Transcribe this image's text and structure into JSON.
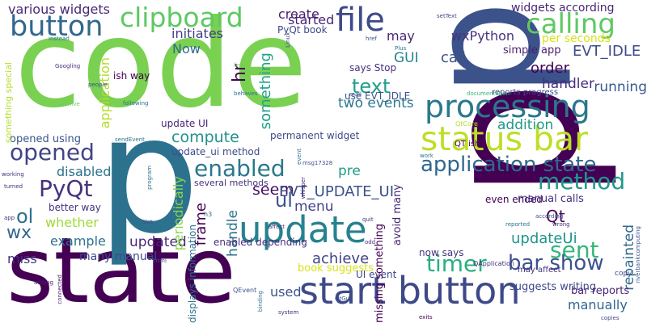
{
  "word_cloud": {
    "words": [
      {
        "text": "code",
        "color": "#7ad151",
        "rotate": 0
      },
      {
        "text": "state",
        "color": "#440154",
        "rotate": 0
      },
      {
        "text": "p",
        "color": "#2c728e",
        "rotate": 0
      },
      {
        "text": "p",
        "color": "#440154",
        "rotate": 90
      },
      {
        "text": "p",
        "color": "#3b528b",
        "rotate": 90
      },
      {
        "text": "start button",
        "color": "#3e4989",
        "rotate": 0
      },
      {
        "text": "status bar",
        "color": "#bddf26",
        "rotate": 0
      },
      {
        "text": "processing",
        "color": "#2a788e",
        "rotate": 0
      },
      {
        "text": "update",
        "color": "#26828e",
        "rotate": 0
      },
      {
        "text": "file",
        "color": "#3e4a89",
        "rotate": 0
      },
      {
        "text": "button",
        "color": "#31688e",
        "rotate": 0
      },
      {
        "text": "clipboard",
        "color": "#5ec962",
        "rotate": 0
      },
      {
        "text": "calling",
        "color": "#5ec962",
        "rotate": 0
      },
      {
        "text": "opened",
        "color": "#414487",
        "rotate": 0
      },
      {
        "text": "application state",
        "color": "#31688e",
        "rotate": 0
      },
      {
        "text": "enabled",
        "color": "#2a788e",
        "rotate": 0
      },
      {
        "text": "method",
        "color": "#1f988b",
        "rotate": 0
      },
      {
        "text": "PyQt",
        "color": "#46327e",
        "rotate": 0
      },
      {
        "text": "timer",
        "color": "#29af7f",
        "rotate": 0
      },
      {
        "text": "sent",
        "color": "#35b779",
        "rotate": 0
      },
      {
        "text": "bar show",
        "color": "#3b528b",
        "rotate": 0
      },
      {
        "text": "ul",
        "color": "#3b528b",
        "rotate": 0
      },
      {
        "text": "ol",
        "color": "#2c728e",
        "rotate": 0
      },
      {
        "text": "wx",
        "color": "#31688e",
        "rotate": 0
      },
      {
        "text": "text",
        "color": "#1f9e89",
        "rotate": 0
      },
      {
        "text": "various widgets",
        "color": "#482878",
        "rotate": 0
      },
      {
        "text": "initiates",
        "color": "#433e85",
        "rotate": 0
      },
      {
        "text": "create",
        "color": "#481a6c",
        "rotate": 0
      },
      {
        "text": "started",
        "color": "#482475",
        "rotate": 0
      },
      {
        "text": "PyQt book",
        "color": "#3e4989",
        "rotate": 0
      },
      {
        "text": "may",
        "color": "#482878",
        "rotate": 0
      },
      {
        "text": "wxPython",
        "color": "#46337f",
        "rotate": 0
      },
      {
        "text": "widgets according",
        "color": "#482677",
        "rotate": 0
      },
      {
        "text": "per seconds",
        "color": "#d8e219",
        "rotate": 0
      },
      {
        "text": "EVT_IDLE",
        "color": "#3e4a89",
        "rotate": 0
      },
      {
        "text": "call",
        "color": "#3b528b",
        "rotate": 0
      },
      {
        "text": "simple app",
        "color": "#481f70",
        "rotate": 0
      },
      {
        "text": "order",
        "color": "#440154",
        "rotate": 0
      },
      {
        "text": "handler",
        "color": "#472d7b",
        "rotate": 0
      },
      {
        "text": "running",
        "color": "#38588c",
        "rotate": 0
      },
      {
        "text": "GUI",
        "color": "#26828e",
        "rotate": 0
      },
      {
        "text": "two events",
        "color": "#2a788e",
        "rotate": 0
      },
      {
        "text": "addition",
        "color": "#1f9a8a",
        "rotate": 0
      },
      {
        "text": "Now",
        "color": "#31688e",
        "rotate": 0
      },
      {
        "text": "something",
        "color": "#1fa188",
        "rotate": 90
      },
      {
        "text": "hr",
        "color": "#440154",
        "rotate": 90
      },
      {
        "text": "compute",
        "color": "#21918c",
        "rotate": 0
      },
      {
        "text": "application",
        "color": "#b5de2b",
        "rotate": 90
      },
      {
        "text": "opened using",
        "color": "#3b528b",
        "rotate": 0
      },
      {
        "text": "update UI",
        "color": "#482475",
        "rotate": 0
      },
      {
        "text": "update_ui method",
        "color": "#3e4a89",
        "rotate": 0
      },
      {
        "text": "permanent widget",
        "color": "#3e4989",
        "rotate": 0
      },
      {
        "text": "disabled",
        "color": "#2c728e",
        "rotate": 0
      },
      {
        "text": "seem",
        "color": "#471063",
        "rotate": 0
      },
      {
        "text": "pre",
        "color": "#1f9a8a",
        "rotate": 0
      },
      {
        "text": "even ended",
        "color": "#440154",
        "rotate": 0
      },
      {
        "text": "EVT_UPDATE_UI",
        "color": "#3b528b",
        "rotate": 0
      },
      {
        "text": "menu",
        "color": "#414487",
        "rotate": 0
      },
      {
        "text": "manual calls",
        "color": "#46307e",
        "rotate": 0
      },
      {
        "text": "Qt",
        "color": "#440154",
        "rotate": 0
      },
      {
        "text": "whether",
        "color": "#a0da39",
        "rotate": 0
      },
      {
        "text": "better way",
        "color": "#46327e",
        "rotate": 0
      },
      {
        "text": "example",
        "color": "#2c728e",
        "rotate": 0
      },
      {
        "text": "updated",
        "color": "#482878",
        "rotate": 0
      },
      {
        "text": "frame",
        "color": "#440154",
        "rotate": 90
      },
      {
        "text": "periodically",
        "color": "#86d549",
        "rotate": 90
      },
      {
        "text": "handle",
        "color": "#2c728e",
        "rotate": 90
      },
      {
        "text": "updateUi",
        "color": "#1f968b",
        "rotate": 0
      },
      {
        "text": "repainted",
        "color": "#31688e",
        "rotate": 90
      },
      {
        "text": "miss",
        "color": "#46307e",
        "rotate": 0
      },
      {
        "text": "many manual",
        "color": "#3e4989",
        "rotate": 0
      },
      {
        "text": "achieve",
        "color": "#414487",
        "rotate": 0
      },
      {
        "text": "now says",
        "color": "#46337f",
        "rotate": 0
      },
      {
        "text": "suggests writing",
        "color": "#3e4989",
        "rotate": 0
      },
      {
        "text": "manually",
        "color": "#31688e",
        "rotate": 0
      },
      {
        "text": "book suggests",
        "color": "#d8e219",
        "rotate": 0
      },
      {
        "text": "UI event",
        "color": "#3e4989",
        "rotate": 0
      },
      {
        "text": "used",
        "color": "#3b528b",
        "rotate": 0
      },
      {
        "text": "missing something",
        "color": "#440154",
        "rotate": 90
      },
      {
        "text": "avoid many",
        "color": "#482878",
        "rotate": 90
      },
      {
        "text": "bar reports",
        "color": "#482475",
        "rotate": 0
      },
      {
        "text": "enabled depending",
        "color": "#472d7b",
        "rotate": 0
      },
      {
        "text": "several methods",
        "color": "#46327e",
        "rotate": 0
      },
      {
        "text": "displays information",
        "color": "#2c728e",
        "rotate": 90
      },
      {
        "text": "something special",
        "color": "#b5de2b",
        "rotate": 90
      },
      {
        "text": "says Stop",
        "color": "#46327e",
        "rotate": 0
      },
      {
        "text": "use EVT_IDLE",
        "color": "#3b528b",
        "rotate": 0
      },
      {
        "text": "ish way",
        "color": "#440154",
        "rotate": 0
      },
      {
        "text": "reports progress",
        "color": "#3e4989",
        "rotate": 0
      },
      {
        "text": "documentation",
        "color": "#35b779",
        "rotate": 0
      },
      {
        "text": "may affect",
        "color": "#46307e",
        "rotate": 0
      },
      {
        "text": "copy",
        "color": "#3e4989",
        "rotate": 0
      },
      {
        "text": "QT ish",
        "color": "#440154",
        "rotate": 0
      },
      {
        "text": "QtCore",
        "color": "#b5de2b",
        "rotate": 0
      },
      {
        "text": "Googling",
        "color": "#46307e",
        "rotate": 0
      },
      {
        "text": "instead",
        "color": "#2c728e",
        "rotate": 0
      },
      {
        "text": "people",
        "color": "#3b528b",
        "rotate": 0
      },
      {
        "text": "archive",
        "color": "#6ccd5a",
        "rotate": 0
      },
      {
        "text": "following",
        "color": "#2c728e",
        "rotate": 0
      },
      {
        "text": "sendEvent",
        "color": "#2c728e",
        "rotate": 0
      },
      {
        "text": "working",
        "color": "#46307e",
        "rotate": 0
      },
      {
        "text": "turned",
        "color": "#472d7b",
        "rotate": 0
      },
      {
        "text": "program",
        "color": "#2c728e",
        "rotate": 90
      },
      {
        "text": "app",
        "color": "#46307e",
        "rotate": 0
      },
      {
        "text": "slot",
        "color": "#3b528b",
        "rotate": 0
      },
      {
        "text": "connected",
        "color": "#481f70",
        "rotate": 90
      },
      {
        "text": "adding",
        "color": "#481f70",
        "rotate": 0
      },
      {
        "text": "html",
        "color": "#3e4989",
        "rotate": 0
      },
      {
        "text": "QEvent",
        "color": "#3b528b",
        "rotate": 0
      },
      {
        "text": "binding",
        "color": "#2c728e",
        "rotate": 90
      },
      {
        "text": "system",
        "color": "#472d7b",
        "rotate": 0
      },
      {
        "text": "QtGui",
        "color": "#3b528b",
        "rotate": 0
      },
      {
        "text": "QApplication",
        "color": "#46307e",
        "rotate": 0
      },
      {
        "text": "exits",
        "color": "#440154",
        "rotate": 0
      },
      {
        "text": "copies",
        "color": "#3e4989",
        "rotate": 0
      },
      {
        "text": "riverbankcomputing",
        "color": "#3b528b",
        "rotate": 90
      },
      {
        "text": "reported",
        "color": "#2c728e",
        "rotate": 0
      },
      {
        "text": "wrong",
        "color": "#472d7b",
        "rotate": 0
      },
      {
        "text": "according",
        "color": "#3b528b",
        "rotate": 0
      },
      {
        "text": "h3",
        "color": "#2c728e",
        "rotate": 0
      },
      {
        "text": "quit",
        "color": "#46307e",
        "rotate": 0
      },
      {
        "text": "event",
        "color": "#2c728e",
        "rotate": 90
      },
      {
        "text": "affect",
        "color": "#472d7b",
        "rotate": 0
      },
      {
        "text": "msg17328",
        "color": "#3b528b",
        "rotate": 0
      },
      {
        "text": "odd",
        "color": "#46307e",
        "rotate": 0
      },
      {
        "text": "Linux",
        "color": "#3e4989",
        "rotate": 90
      },
      {
        "text": "href",
        "color": "#3b528b",
        "rotate": 0
      },
      {
        "text": "Plus",
        "color": "#2c728e",
        "rotate": 0
      },
      {
        "text": "setText",
        "color": "#3e4989",
        "rotate": 0
      },
      {
        "text": "mail",
        "color": "#3b528b",
        "rotate": 0
      },
      {
        "text": "behaves",
        "color": "#2c728e",
        "rotate": 0
      },
      {
        "text": "line",
        "color": "#6ccd5a",
        "rotate": 0
      },
      {
        "text": "work",
        "color": "#2c728e",
        "rotate": 0
      },
      {
        "text": "whisper",
        "color": "#482878",
        "rotate": 90
      }
    ]
  }
}
